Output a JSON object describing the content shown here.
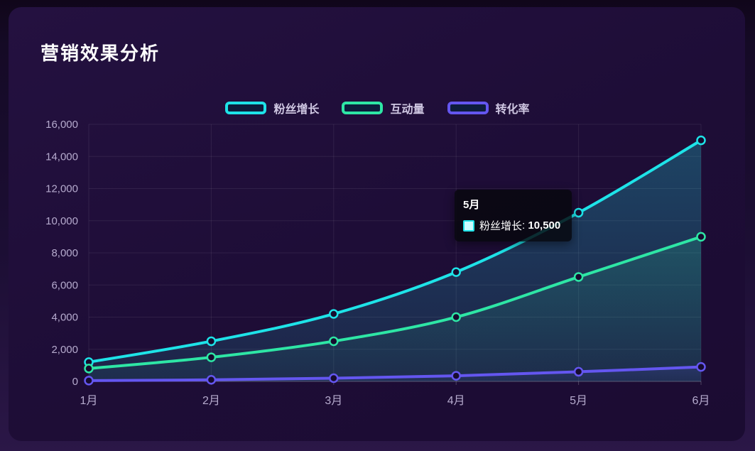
{
  "page": {
    "title": "营销效果分析"
  },
  "colors": {
    "card_bg": "#1e0d37",
    "grid_line": "rgba(255,255,255,0.08)",
    "axis_line": "rgba(255,255,255,0.22)",
    "axis_label": "#b6abce",
    "legend_label": "#cfc7e2",
    "legend_marker_fill": "#0d1d3c",
    "point_fill": "#170c2e",
    "tooltip_bg": "rgba(7,7,13,0.83)"
  },
  "chart_data": {
    "type": "line",
    "title": "营销效果分析",
    "xlabel": "",
    "ylabel": "",
    "categories": [
      "1月",
      "2月",
      "3月",
      "4月",
      "5月",
      "6月"
    ],
    "series": [
      {
        "name": "粉丝增长",
        "color": "#1ee3e8",
        "values": [
          1200,
          2500,
          4200,
          6800,
          10500,
          15000
        ]
      },
      {
        "name": "互动量",
        "color": "#2ee6a5",
        "values": [
          800,
          1500,
          2500,
          4000,
          6500,
          9000
        ]
      },
      {
        "name": "转化率",
        "color": "#6456f0",
        "values": [
          50,
          100,
          200,
          350,
          600,
          900
        ]
      }
    ],
    "ylim": [
      0,
      16000
    ],
    "y_ticks": [
      0,
      2000,
      4000,
      6000,
      8000,
      10000,
      12000,
      14000,
      16000
    ],
    "y_tick_labels": [
      "0",
      "2,000",
      "4,000",
      "6,000",
      "8,000",
      "10,000",
      "12,000",
      "14,000",
      "16,000"
    ],
    "grid": true,
    "smooth": true,
    "area_fill": true,
    "legend_position": "top"
  },
  "tooltip": {
    "title": "5月",
    "series_name": "粉丝增长",
    "sep": ": ",
    "value": "10,500",
    "marker_color": "#1ee3e8"
  }
}
